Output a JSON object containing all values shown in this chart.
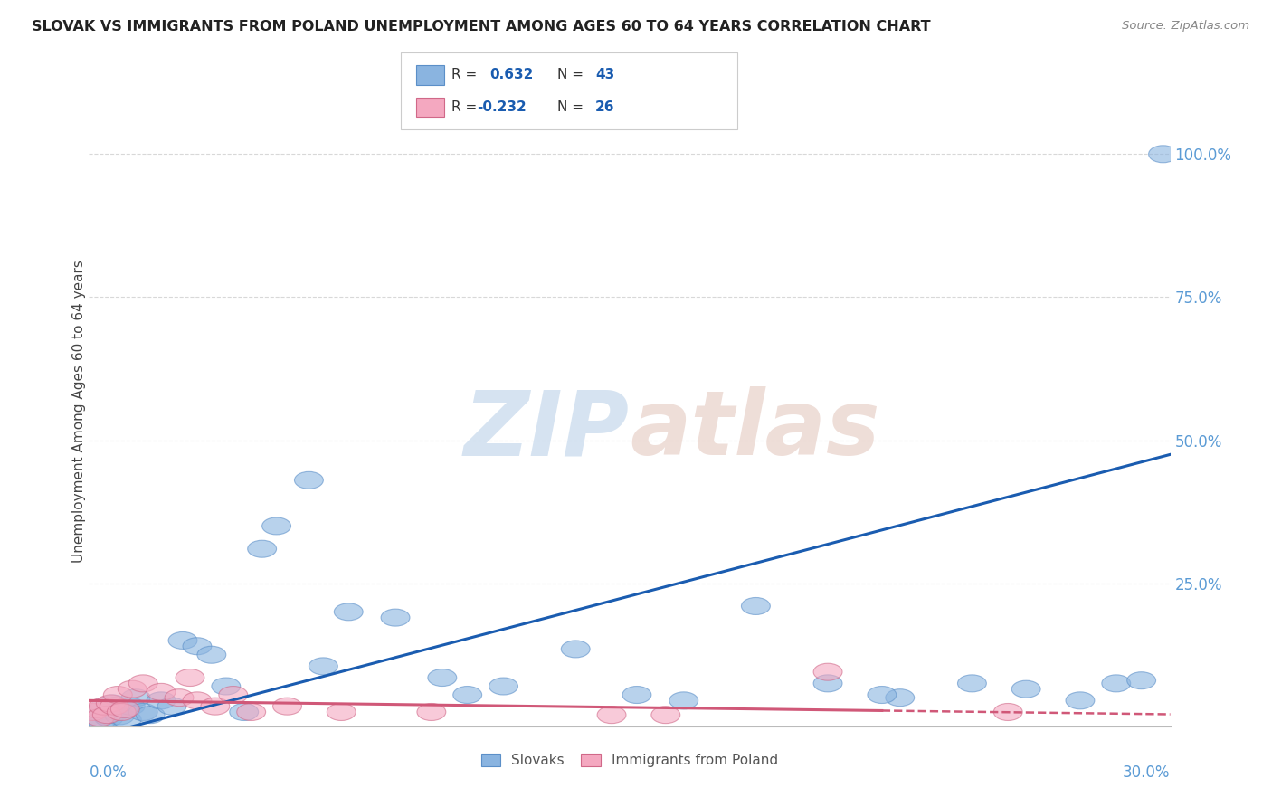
{
  "title": "SLOVAK VS IMMIGRANTS FROM POLAND UNEMPLOYMENT AMONG AGES 60 TO 64 YEARS CORRELATION CHART",
  "source": "Source: ZipAtlas.com",
  "ylabel": "Unemployment Among Ages 60 to 64 years",
  "xlim": [
    0.0,
    30.0
  ],
  "ylim": [
    0.0,
    110.0
  ],
  "ytick_vals": [
    25,
    50,
    75,
    100
  ],
  "ytick_labels": [
    "25.0%",
    "50.0%",
    "75.0%",
    "100.0%"
  ],
  "slovaks_x": [
    0.15,
    0.25,
    0.35,
    0.45,
    0.55,
    0.65,
    0.75,
    0.85,
    0.95,
    1.05,
    1.15,
    1.3,
    1.5,
    1.7,
    2.0,
    2.3,
    2.6,
    3.0,
    3.4,
    3.8,
    4.3,
    5.2,
    6.1,
    7.2,
    8.5,
    9.8,
    11.5,
    13.5,
    15.2,
    16.5,
    18.5,
    20.5,
    22.5,
    24.5,
    26.0,
    27.5,
    28.5,
    29.2,
    29.8,
    6.5,
    10.5,
    22.0,
    4.8
  ],
  "slovaks_y": [
    1.5,
    2.5,
    1.0,
    3.5,
    1.5,
    4.0,
    2.5,
    1.8,
    3.0,
    1.2,
    3.5,
    5.0,
    2.5,
    2.0,
    4.5,
    3.5,
    15.0,
    14.0,
    12.5,
    7.0,
    2.5,
    35.0,
    43.0,
    20.0,
    19.0,
    8.5,
    7.0,
    13.5,
    5.5,
    4.5,
    21.0,
    7.5,
    5.0,
    7.5,
    6.5,
    4.5,
    7.5,
    8.0,
    100.0,
    10.5,
    5.5,
    5.5,
    31.0
  ],
  "poland_x": [
    0.1,
    0.2,
    0.3,
    0.4,
    0.5,
    0.6,
    0.7,
    0.8,
    0.9,
    1.0,
    1.2,
    1.5,
    2.0,
    2.5,
    3.0,
    3.5,
    4.5,
    5.5,
    7.0,
    9.5,
    14.5,
    16.0,
    20.5,
    25.5,
    2.8,
    4.0
  ],
  "poland_y": [
    2.5,
    3.0,
    1.5,
    3.5,
    2.0,
    4.0,
    3.5,
    5.5,
    2.5,
    3.0,
    6.5,
    7.5,
    6.0,
    5.0,
    4.5,
    3.5,
    2.5,
    3.5,
    2.5,
    2.5,
    2.0,
    2.0,
    9.5,
    2.5,
    8.5,
    5.5
  ],
  "blue_scatter_color": "#8ab4e0",
  "blue_scatter_edge": "#5b8fc8",
  "pink_scatter_color": "#f4a8c0",
  "pink_scatter_edge": "#d06888",
  "blue_line_color": "#1a5cb0",
  "pink_line_color": "#d05878",
  "watermark_zip_color": "#c5d8ec",
  "watermark_atlas_color": "#e8d0c8",
  "background_color": "#ffffff",
  "grid_color": "#d8d8d8",
  "ytick_color": "#5b9bd5",
  "xtick_color": "#5b9bd5",
  "title_color": "#222222",
  "source_color": "#888888",
  "ylabel_color": "#444444",
  "legend_r_color": "#1a5cb0",
  "legend_n_color": "#1a5cb0",
  "legend_label_color": "#333333"
}
